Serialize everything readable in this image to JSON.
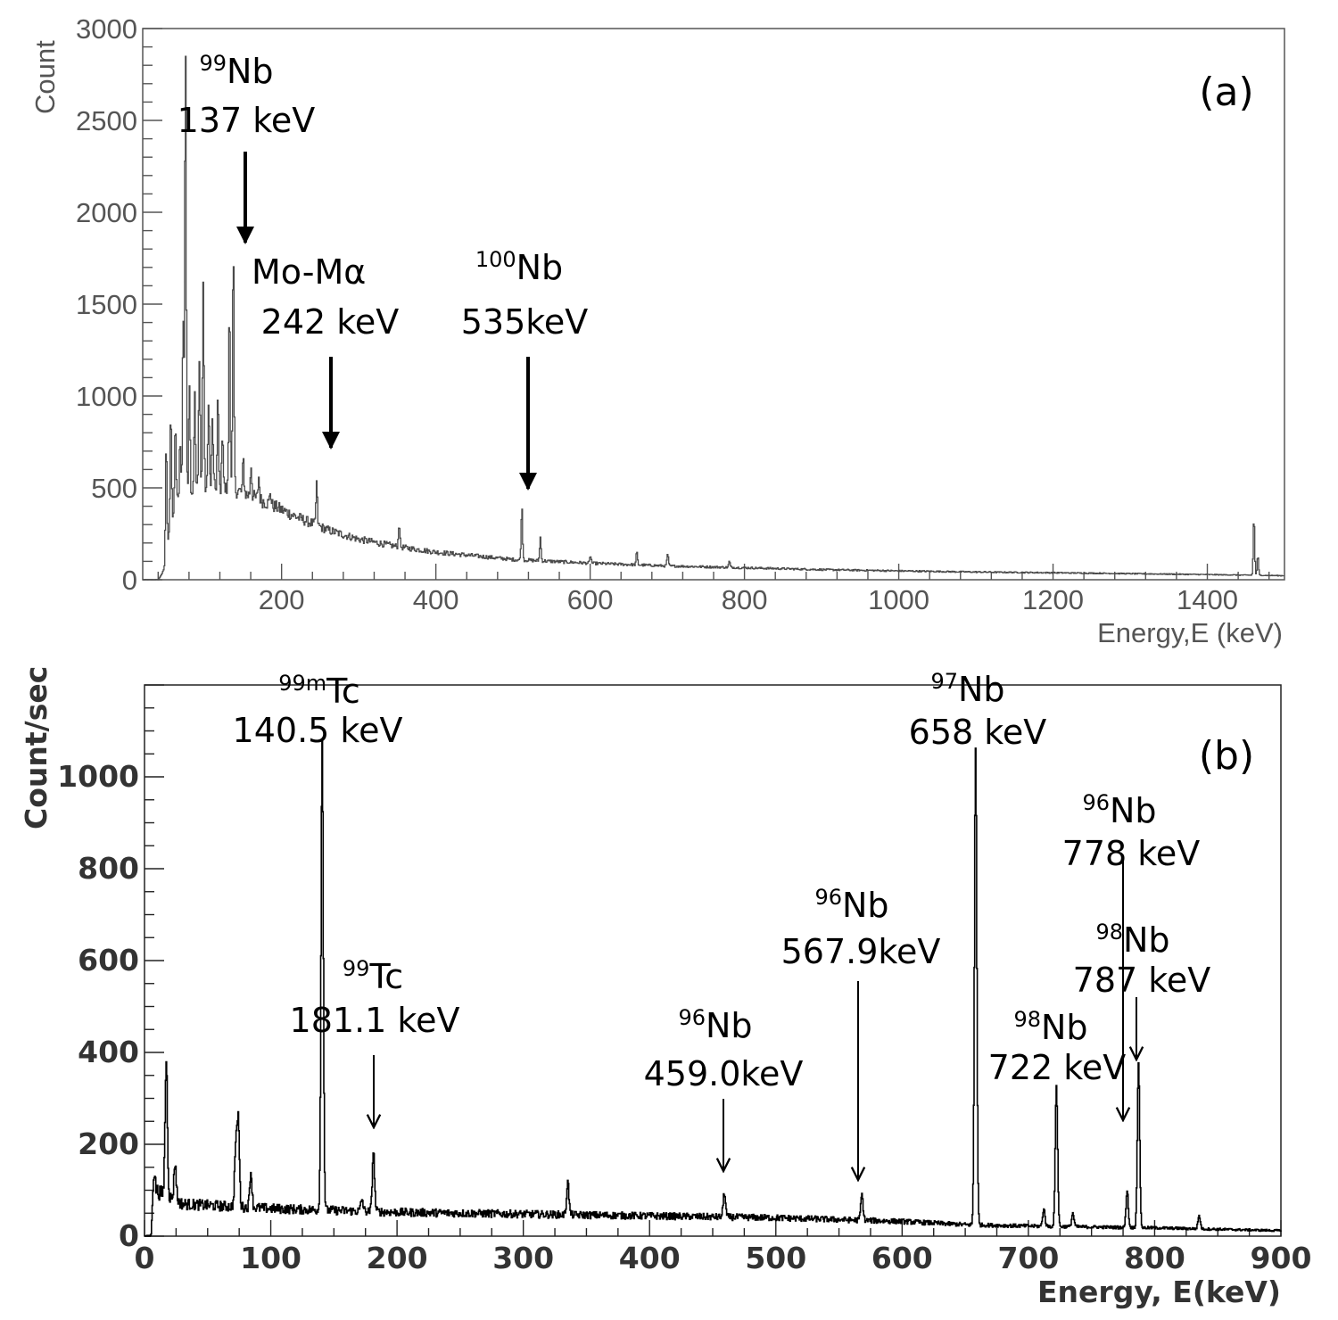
{
  "chart_data": [
    {
      "type": "line",
      "panel_label": "(a)",
      "xlabel": "Energy,E (keV)",
      "ylabel": "Count",
      "xlim": [
        20,
        1500
      ],
      "ylim": [
        0,
        3000
      ],
      "xticks": [
        200,
        400,
        600,
        800,
        1000,
        1200,
        1400
      ],
      "yticks": [
        0,
        500,
        1000,
        1500,
        2000,
        2500,
        3000
      ],
      "series": [
        {
          "name": "spectrum (a)",
          "color": "#4a4a4a",
          "baseline": [
            [
              40,
              0
            ],
            [
              48,
              60
            ],
            [
              55,
              300
            ],
            [
              65,
              430
            ],
            [
              80,
              480
            ],
            [
              100,
              500
            ],
            [
              140,
              490
            ],
            [
              180,
              420
            ],
            [
              220,
              340
            ],
            [
              260,
              270
            ],
            [
              300,
              220
            ],
            [
              350,
              180
            ],
            [
              400,
              150
            ],
            [
              450,
              130
            ],
            [
              500,
              110
            ],
            [
              600,
              90
            ],
            [
              700,
              75
            ],
            [
              800,
              65
            ],
            [
              900,
              55
            ],
            [
              1000,
              48
            ],
            [
              1100,
              42
            ],
            [
              1200,
              38
            ],
            [
              1300,
              33
            ],
            [
              1400,
              28
            ],
            [
              1500,
              22
            ]
          ],
          "peaks": [
            {
              "x": 50,
              "y": 750
            },
            {
              "x": 56,
              "y": 900
            },
            {
              "x": 62,
              "y": 850
            },
            {
              "x": 68,
              "y": 780
            },
            {
              "x": 72,
              "y": 1450
            },
            {
              "x": 75,
              "y": 2950
            },
            {
              "x": 80,
              "y": 1100
            },
            {
              "x": 87,
              "y": 1000
            },
            {
              "x": 93,
              "y": 1230
            },
            {
              "x": 98,
              "y": 1640
            },
            {
              "x": 105,
              "y": 1000
            },
            {
              "x": 110,
              "y": 870
            },
            {
              "x": 117,
              "y": 990
            },
            {
              "x": 123,
              "y": 820
            },
            {
              "x": 132,
              "y": 1530
            },
            {
              "x": 137,
              "y": 1790
            },
            {
              "x": 150,
              "y": 650
            },
            {
              "x": 160,
              "y": 630
            },
            {
              "x": 170,
              "y": 560
            },
            {
              "x": 185,
              "y": 480
            },
            {
              "x": 245,
              "y": 530
            },
            {
              "x": 352,
              "y": 310
            },
            {
              "x": 511,
              "y": 400
            },
            {
              "x": 535,
              "y": 230
            },
            {
              "x": 600,
              "y": 130
            },
            {
              "x": 660,
              "y": 150
            },
            {
              "x": 700,
              "y": 140
            },
            {
              "x": 780,
              "y": 100
            },
            {
              "x": 1460,
              "y": 340
            },
            {
              "x": 1465,
              "y": 130
            }
          ]
        }
      ],
      "annotations": [
        {
          "isotope": "99",
          "element": "Nb",
          "energy": "137 keV",
          "x": 137
        },
        {
          "isotope": "",
          "element": "Mo-Mα",
          "energy": "242 keV",
          "x": 242
        },
        {
          "isotope": "100",
          "element": "Nb",
          "energy": "535keV",
          "x": 535
        }
      ]
    },
    {
      "type": "line",
      "panel_label": "(b)",
      "xlabel": "Energy, E(keV)",
      "ylabel": "Count/sec",
      "xlim": [
        0,
        900
      ],
      "ylim": [
        0,
        1200
      ],
      "xticks": [
        0,
        100,
        200,
        300,
        400,
        500,
        600,
        700,
        800,
        900
      ],
      "yticks": [
        0,
        200,
        400,
        600,
        800,
        1000
      ],
      "series": [
        {
          "name": "spectrum (b)",
          "color": "#000000",
          "baseline": [
            [
              5,
              0
            ],
            [
              8,
              100
            ],
            [
              30,
              70
            ],
            [
              100,
              60
            ],
            [
              200,
              52
            ],
            [
              300,
              48
            ],
            [
              400,
              44
            ],
            [
              500,
              40
            ],
            [
              600,
              32
            ],
            [
              650,
              25
            ],
            [
              700,
              22
            ],
            [
              800,
              18
            ],
            [
              900,
              12
            ]
          ],
          "peaks": [
            {
              "x": 7,
              "y": 130
            },
            {
              "x": 17,
              "y": 385
            },
            {
              "x": 24,
              "y": 160
            },
            {
              "x": 72,
              "y": 190
            },
            {
              "x": 74,
              "y": 255
            },
            {
              "x": 84,
              "y": 140
            },
            {
              "x": 140.5,
              "y": 1080
            },
            {
              "x": 172,
              "y": 80
            },
            {
              "x": 181.1,
              "y": 185
            },
            {
              "x": 335,
              "y": 120
            },
            {
              "x": 459,
              "y": 95
            },
            {
              "x": 567.9,
              "y": 90
            },
            {
              "x": 658,
              "y": 1065
            },
            {
              "x": 712,
              "y": 60
            },
            {
              "x": 722,
              "y": 330
            },
            {
              "x": 735,
              "y": 50
            },
            {
              "x": 778,
              "y": 100
            },
            {
              "x": 787,
              "y": 375
            },
            {
              "x": 835,
              "y": 45
            }
          ]
        }
      ],
      "annotations": [
        {
          "isotope": "99m",
          "element": "Tc",
          "energy": "140.5 keV",
          "x": 140.5
        },
        {
          "isotope": "99",
          "element": "Tc",
          "energy": "181.1 keV",
          "x": 181.1
        },
        {
          "isotope": "96",
          "element": "Nb",
          "energy": "459.0keV",
          "x": 459
        },
        {
          "isotope": "96",
          "element": "Nb",
          "energy": "567.9keV",
          "x": 567.9
        },
        {
          "isotope": "97",
          "element": "Nb",
          "energy": "658 keV",
          "x": 658
        },
        {
          "isotope": "96",
          "element": "Nb",
          "energy": "778 keV",
          "x": 778
        },
        {
          "isotope": "98",
          "element": "Nb",
          "energy": "787 keV",
          "x": 787
        },
        {
          "isotope": "98",
          "element": "Nb",
          "energy": "722 keV",
          "x": 722
        }
      ]
    }
  ]
}
